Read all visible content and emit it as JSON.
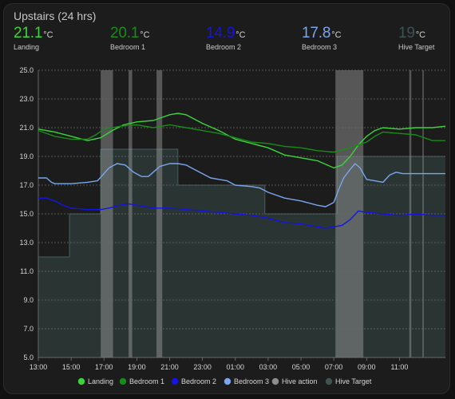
{
  "card": {
    "title": "Upstairs (24 hrs)"
  },
  "stats": [
    {
      "value": "21.1",
      "unit": "°C",
      "label": "Landing",
      "color": "#3bd43b"
    },
    {
      "value": "20.1",
      "unit": "°C",
      "label": "Bedroom 1",
      "color": "#178c17"
    },
    {
      "value": "14.9",
      "unit": "°C",
      "label": "Bedroom 2",
      "color": "#1414e6"
    },
    {
      "value": "17.8",
      "unit": "°C",
      "label": "Bedroom 3",
      "color": "#7aa6ee"
    },
    {
      "value": "19",
      "unit": "°C",
      "label": "Hive Target",
      "color": "#3c5350"
    }
  ],
  "chart_data": {
    "type": "line",
    "y_ticks": [
      "5.0",
      "7.0",
      "9.0",
      "11.0",
      "13.0",
      "15.0",
      "17.0",
      "19.0",
      "21.0",
      "23.0",
      "25.0"
    ],
    "x_ticks": [
      "13:00",
      "15:00",
      "17:00",
      "19:00",
      "21:00",
      "23:00",
      "01:00",
      "03:00",
      "05:00",
      "07:00",
      "09:00",
      "11:00"
    ],
    "x_range": [
      13,
      37.8
    ],
    "ylim": [
      5,
      25
    ],
    "grid": true,
    "legend_position": "bottom",
    "series": [
      {
        "name": "Landing",
        "color": "#3bd43b",
        "points": [
          [
            13,
            20.9
          ],
          [
            14,
            20.7
          ],
          [
            15,
            20.4
          ],
          [
            16,
            20.1
          ],
          [
            16.8,
            20.3
          ],
          [
            17.5,
            20.8
          ],
          [
            18.2,
            21.2
          ],
          [
            19,
            21.4
          ],
          [
            20,
            21.5
          ],
          [
            20.5,
            21.7
          ],
          [
            21,
            21.9
          ],
          [
            21.5,
            22.0
          ],
          [
            22,
            21.9
          ],
          [
            23,
            21.3
          ],
          [
            24,
            20.8
          ],
          [
            25,
            20.2
          ],
          [
            26,
            19.9
          ],
          [
            27,
            19.6
          ],
          [
            28,
            19.1
          ],
          [
            29,
            18.9
          ],
          [
            30,
            18.7
          ],
          [
            31,
            18.2
          ],
          [
            31.5,
            18.4
          ],
          [
            32,
            19.0
          ],
          [
            32.5,
            19.8
          ],
          [
            33,
            20.4
          ],
          [
            33.5,
            20.8
          ],
          [
            34,
            21.0
          ],
          [
            35,
            20.9
          ],
          [
            36,
            21.0
          ],
          [
            37,
            21.0
          ],
          [
            37.8,
            21.1
          ]
        ]
      },
      {
        "name": "Bedroom 1",
        "color": "#178c17",
        "points": [
          [
            13,
            20.8
          ],
          [
            14,
            20.4
          ],
          [
            15,
            20.2
          ],
          [
            16,
            20.2
          ],
          [
            16.5,
            20.5
          ],
          [
            17,
            20.9
          ],
          [
            18,
            21.1
          ],
          [
            19,
            21.2
          ],
          [
            20,
            21.0
          ],
          [
            21,
            21.2
          ],
          [
            22,
            21.0
          ],
          [
            23,
            20.8
          ],
          [
            24,
            20.6
          ],
          [
            25,
            20.3
          ],
          [
            26,
            20.0
          ],
          [
            27,
            19.9
          ],
          [
            28,
            19.7
          ],
          [
            29,
            19.6
          ],
          [
            30,
            19.4
          ],
          [
            31,
            19.3
          ],
          [
            32,
            19.6
          ],
          [
            33,
            20.0
          ],
          [
            33.5,
            20.4
          ],
          [
            34,
            20.7
          ],
          [
            35,
            20.6
          ],
          [
            36,
            20.5
          ],
          [
            37,
            20.1
          ],
          [
            37.8,
            20.1
          ]
        ]
      },
      {
        "name": "Bedroom 2",
        "color": "#1414e6",
        "points": [
          [
            13,
            16.1
          ],
          [
            13.5,
            16.1
          ],
          [
            14,
            15.9
          ],
          [
            14.5,
            15.6
          ],
          [
            15,
            15.4
          ],
          [
            16,
            15.3
          ],
          [
            16.8,
            15.3
          ],
          [
            17.3,
            15.4
          ],
          [
            18,
            15.6
          ],
          [
            18.5,
            15.7
          ],
          [
            19,
            15.6
          ],
          [
            19.5,
            15.5
          ],
          [
            20,
            15.4
          ],
          [
            21,
            15.4
          ],
          [
            22,
            15.3
          ],
          [
            23,
            15.2
          ],
          [
            24,
            15.1
          ],
          [
            25,
            15.0
          ],
          [
            26,
            14.9
          ],
          [
            27,
            14.7
          ],
          [
            28,
            14.4
          ],
          [
            29,
            14.3
          ],
          [
            30,
            14.1
          ],
          [
            30.5,
            14.0
          ],
          [
            31,
            14.1
          ],
          [
            31.5,
            14.2
          ],
          [
            32,
            14.6
          ],
          [
            32.5,
            15.2
          ],
          [
            33,
            15.1
          ],
          [
            34,
            15.0
          ],
          [
            35,
            14.9
          ],
          [
            36,
            15.0
          ],
          [
            37,
            14.9
          ],
          [
            37.8,
            14.9
          ]
        ]
      },
      {
        "name": "Bedroom 3",
        "color": "#7aa6ee",
        "points": [
          [
            13,
            17.5
          ],
          [
            13.5,
            17.5
          ],
          [
            13.8,
            17.2
          ],
          [
            14,
            17.1
          ],
          [
            14.5,
            17.1
          ],
          [
            15,
            17.1
          ],
          [
            16,
            17.2
          ],
          [
            16.6,
            17.3
          ],
          [
            17,
            17.8
          ],
          [
            17.3,
            18.2
          ],
          [
            17.8,
            18.5
          ],
          [
            18.3,
            18.4
          ],
          [
            18.8,
            17.9
          ],
          [
            19.3,
            17.6
          ],
          [
            19.7,
            17.6
          ],
          [
            20,
            17.9
          ],
          [
            20.4,
            18.3
          ],
          [
            21,
            18.5
          ],
          [
            21.5,
            18.5
          ],
          [
            22,
            18.4
          ],
          [
            22.5,
            18.1
          ],
          [
            23,
            17.8
          ],
          [
            23.5,
            17.5
          ],
          [
            24,
            17.4
          ],
          [
            24.5,
            17.3
          ],
          [
            25,
            17.0
          ],
          [
            26,
            16.9
          ],
          [
            26.5,
            16.8
          ],
          [
            27,
            16.5
          ],
          [
            28,
            16.1
          ],
          [
            29,
            15.9
          ],
          [
            30,
            15.6
          ],
          [
            30.5,
            15.5
          ],
          [
            31,
            15.8
          ],
          [
            31.3,
            16.7
          ],
          [
            31.6,
            17.5
          ],
          [
            32,
            18.1
          ],
          [
            32.3,
            18.5
          ],
          [
            32.6,
            18.2
          ],
          [
            33,
            17.4
          ],
          [
            33.5,
            17.3
          ],
          [
            34,
            17.2
          ],
          [
            34.4,
            17.7
          ],
          [
            34.8,
            17.9
          ],
          [
            35.2,
            17.8
          ],
          [
            36,
            17.8
          ],
          [
            37,
            17.8
          ],
          [
            37.8,
            17.8
          ]
        ]
      }
    ],
    "hive_target": {
      "name": "Hive Target",
      "color": "#3c5350",
      "steps": [
        [
          13,
          12
        ],
        [
          14.9,
          15
        ],
        [
          16.8,
          19.5
        ],
        [
          18.7,
          19.5
        ],
        [
          21.5,
          17
        ],
        [
          24.2,
          17
        ],
        [
          26.8,
          15
        ],
        [
          31.2,
          19
        ],
        [
          37.8,
          19
        ]
      ]
    },
    "hive_action": {
      "name": "Hive action",
      "color": "#8d8d8d",
      "intervals": [
        [
          16.8,
          17.55
        ],
        [
          18.5,
          18.72
        ],
        [
          20.2,
          20.55
        ],
        [
          31.1,
          32.8
        ],
        [
          35.6,
          35.72
        ],
        [
          36.4,
          36.48
        ]
      ]
    }
  }
}
